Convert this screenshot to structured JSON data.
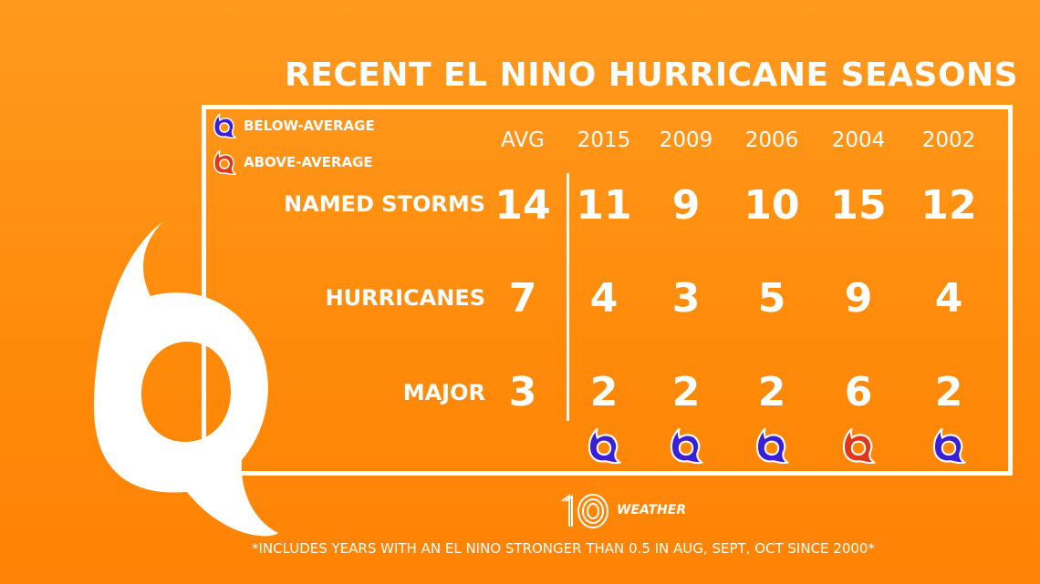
{
  "title": "RECENT EL NINO HURRICANE SEASONS",
  "legend": {
    "below_label": "BELOW-AVERAGE",
    "above_label": "ABOVE-AVERAGE",
    "below_color": "#3a1fd6",
    "above_color": "#e0361c"
  },
  "columns": [
    "AVG",
    "2015",
    "2009",
    "2006",
    "2004",
    "2002"
  ],
  "rows": [
    {
      "label": "NAMED STORMS",
      "values": [
        "14",
        "11",
        "9",
        "10",
        "15",
        "12"
      ]
    },
    {
      "label": "HURRICANES",
      "values": [
        "7",
        "4",
        "3",
        "5",
        "9",
        "4"
      ]
    },
    {
      "label": "MAJOR",
      "values": [
        "3",
        "2",
        "2",
        "2",
        "6",
        "2"
      ]
    }
  ],
  "season_ratings": [
    "below",
    "below",
    "below",
    "above",
    "below"
  ],
  "branding": {
    "number": "10",
    "word": "WEATHER"
  },
  "footnote": "*INCLUDES YEARS WITH AN EL NINO STRONGER THAN 0.5 IN AUG, SEPT, OCT SINCE 2000*",
  "icons": {
    "background": "hurricane-symbol-icon",
    "legend": "hurricane-symbol-icon"
  }
}
